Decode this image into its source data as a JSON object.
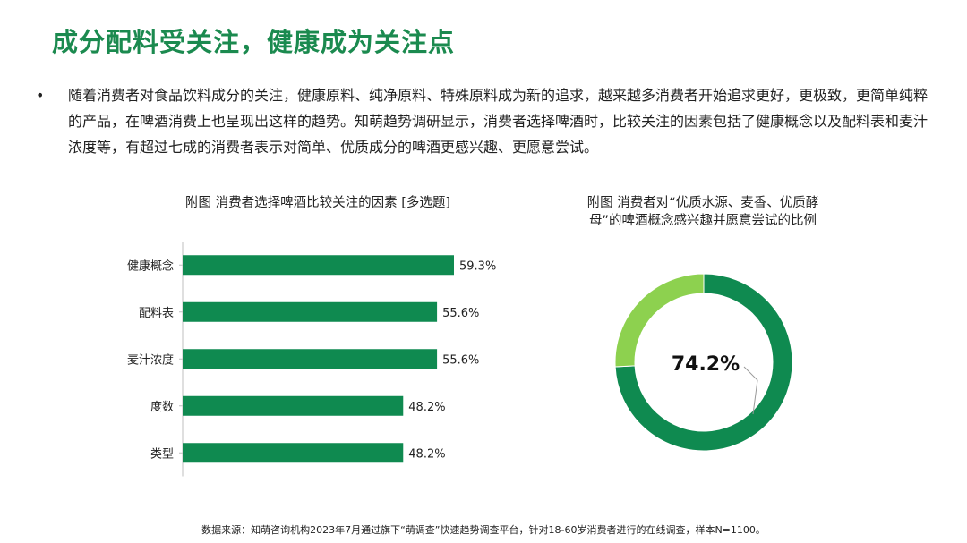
{
  "title": "成分配料受关注，健康成为关注点",
  "bullet": {
    "marker": "•",
    "text": "随着消费者对食品饮料成分的关注，健康原料、纯净原料、特殊原料成为新的追求，越来越多消费者开始追求更好，更极致，更简单纯粹的产品，在啤酒消费上也呈现出这样的趋势。知萌趋势调研显示，消费者选择啤酒时，比较关注的因素包括了健康概念以及配料表和麦汁浓度等，有超过七成的消费者表示对简单、优质成分的啤酒更感兴趣、更愿意尝试。"
  },
  "source": "数据来源：知萌咨询机构2023年7月通过旗下“萌调查”快速趋势调查平台，针对18-60岁消费者进行的在线调查，样本N=1100。",
  "colors": {
    "title": "#1b8a4f",
    "bar": "#0f8a50",
    "donut_main": "#0f8a50",
    "donut_rest": "#8dd14f"
  },
  "chart_data": [
    {
      "type": "bar",
      "orientation": "horizontal",
      "title": "附图 消费者选择啤酒比较关注的因素 [多选题]",
      "categories": [
        "健康概念",
        "配料表",
        "麦汁浓度",
        "度数",
        "类型"
      ],
      "values": [
        59.3,
        55.6,
        55.6,
        48.2,
        48.2
      ],
      "labels": [
        "59.3%",
        "55.6%",
        "55.6%",
        "48.2%",
        "48.2%"
      ],
      "unit": "%",
      "grid": false
    },
    {
      "type": "pie",
      "style": "donut",
      "title": "附图 消费者对“优质水源、麦香、优质酵母”的啤酒概念感兴趣并愿意尝试的比例",
      "title_lines": [
        "附图 消费者对“优质水源、麦香、优质酵",
        "母”的啤酒概念感兴趣并愿意尝试的比例"
      ],
      "values": [
        74.2,
        25.8
      ],
      "center_label": "74.2%"
    }
  ]
}
